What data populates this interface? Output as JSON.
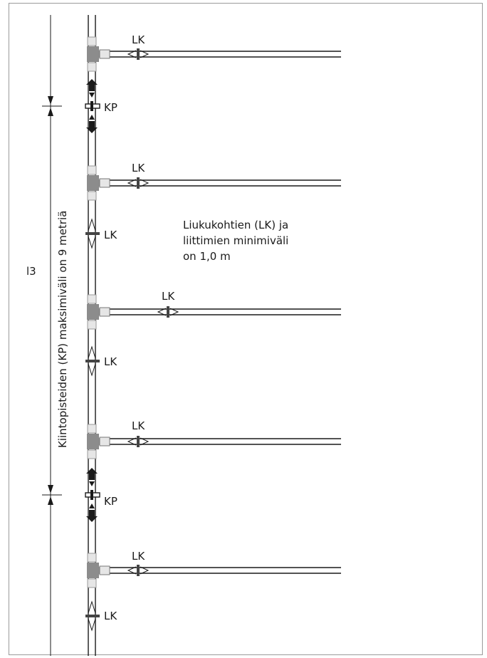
{
  "diagram": {
    "slide_label": "LK",
    "fixed_label": "KP",
    "note_lines": [
      "Liukukohtien (LK) ja",
      "liittimien minimiväli",
      "on 1,0 m"
    ],
    "dimension_text": "Kiintopisteiden (KP) maksimiväli on 9 metriä",
    "dimension_symbol": "l3"
  },
  "colors": {
    "line": "#1a1a1a",
    "tee": "#8c8c8c",
    "coupling": "#e6e6e6",
    "clamp_fill": "#444444"
  }
}
